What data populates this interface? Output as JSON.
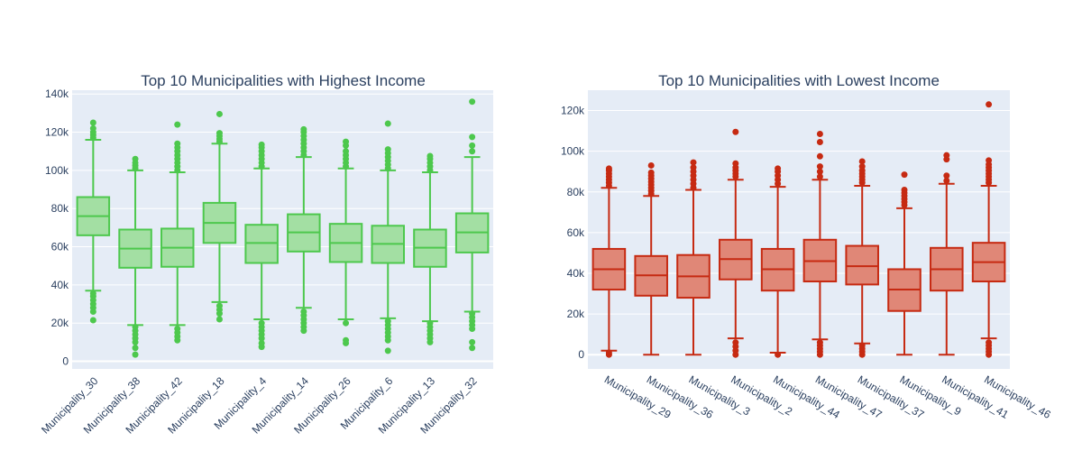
{
  "chart_data": [
    {
      "type": "box",
      "title": "Top 10 Municipalities with Highest Income",
      "xlabel": "",
      "ylabel": "",
      "ylim": [
        -4000,
        142000
      ],
      "yticks": [
        0,
        20000,
        40000,
        60000,
        80000,
        100000,
        120000,
        140000
      ],
      "ytick_labels": [
        "0",
        "20k",
        "40k",
        "60k",
        "80k",
        "100k",
        "120k",
        "140k"
      ],
      "grid": true,
      "colors": {
        "line": "#4dc84d",
        "fill": "#a3dfa3"
      },
      "categories": [
        "Municipality_30",
        "Municipality_38",
        "Municipality_42",
        "Municipality_18",
        "Municipality_4",
        "Municipality_14",
        "Municipality_26",
        "Municipality_6",
        "Municipality_13",
        "Municipality_32"
      ],
      "boxes": [
        {
          "category": "Municipality_30",
          "lower_fence": 37000,
          "q1": 66000,
          "median": 76000,
          "q3": 86000,
          "upper_fence": 116000,
          "outliers": [
            21500,
            26000,
            28000,
            30000,
            32000,
            34000,
            35500,
            117000,
            118500,
            120000,
            122000,
            125000
          ]
        },
        {
          "category": "Municipality_38",
          "lower_fence": 19000,
          "q1": 49000,
          "median": 59000,
          "q3": 69000,
          "upper_fence": 100000,
          "outliers": [
            3500,
            7000,
            10000,
            12000,
            14000,
            16000,
            18000,
            101000,
            102500,
            104000,
            106000
          ]
        },
        {
          "category": "Municipality_42",
          "lower_fence": 19000,
          "q1": 49500,
          "median": 59500,
          "q3": 69500,
          "upper_fence": 99000,
          "outliers": [
            11000,
            13000,
            15000,
            17000,
            100000,
            102000,
            104000,
            106000,
            108000,
            110000,
            112000,
            114000,
            124000
          ]
        },
        {
          "category": "Municipality_18",
          "lower_fence": 31000,
          "q1": 62000,
          "median": 72500,
          "q3": 83000,
          "upper_fence": 114000,
          "outliers": [
            22000,
            25000,
            27000,
            29000,
            115000,
            116500,
            118000,
            119500,
            129500
          ]
        },
        {
          "category": "Municipality_4",
          "lower_fence": 22000,
          "q1": 51500,
          "median": 62000,
          "q3": 71500,
          "upper_fence": 101000,
          "outliers": [
            7500,
            9500,
            12000,
            14000,
            16000,
            18000,
            20000,
            102000,
            104000,
            106000,
            108000,
            110000,
            112000,
            113500
          ]
        },
        {
          "category": "Municipality_14",
          "lower_fence": 28000,
          "q1": 57500,
          "median": 67500,
          "q3": 77000,
          "upper_fence": 107000,
          "outliers": [
            16000,
            18000,
            20000,
            22000,
            24000,
            26000,
            108000,
            110000,
            112000,
            114000,
            116000,
            118000,
            120000,
            121500
          ]
        },
        {
          "category": "Municipality_26",
          "lower_fence": 22000,
          "q1": 52000,
          "median": 62000,
          "q3": 72000,
          "upper_fence": 101000,
          "outliers": [
            9500,
            11000,
            20000,
            102000,
            104000,
            106000,
            108000,
            110000,
            113000,
            115000
          ]
        },
        {
          "category": "Municipality_6",
          "lower_fence": 22500,
          "q1": 51500,
          "median": 61500,
          "q3": 71000,
          "upper_fence": 100000,
          "outliers": [
            5500,
            11000,
            13000,
            15000,
            17000,
            19000,
            21000,
            101000,
            103000,
            105000,
            107000,
            109000,
            111000,
            124500
          ]
        },
        {
          "category": "Municipality_13",
          "lower_fence": 21000,
          "q1": 49500,
          "median": 59500,
          "q3": 69000,
          "upper_fence": 99000,
          "outliers": [
            10000,
            12000,
            14000,
            16000,
            18000,
            20000,
            100000,
            102000,
            104000,
            106000,
            107500
          ]
        },
        {
          "category": "Municipality_32",
          "lower_fence": 26000,
          "q1": 57000,
          "median": 67500,
          "q3": 77500,
          "upper_fence": 107000,
          "outliers": [
            7000,
            10000,
            17000,
            19000,
            21000,
            23000,
            25000,
            110000,
            113000,
            117500,
            136000
          ]
        }
      ]
    },
    {
      "type": "box",
      "title": "Top 10 Municipalities with Lowest Income",
      "xlabel": "",
      "ylabel": "",
      "ylim": [
        -7000,
        130000
      ],
      "yticks": [
        0,
        20000,
        40000,
        60000,
        80000,
        100000,
        120000
      ],
      "ytick_labels": [
        "0",
        "20k",
        "40k",
        "60k",
        "80k",
        "100k",
        "120k"
      ],
      "grid": true,
      "colors": {
        "line": "#c62a12",
        "fill": "#e08777"
      },
      "categories": [
        "Municipality_29",
        "Municipality_36",
        "Municipality_3",
        "Municipality_2",
        "Municipality_44",
        "Municipality_47",
        "Municipality_37",
        "Municipality_9",
        "Municipality_41",
        "Municipality_46"
      ],
      "boxes": [
        {
          "category": "Municipality_29",
          "lower_fence": 2000,
          "q1": 32000,
          "median": 42000,
          "q3": 52000,
          "upper_fence": 82000,
          "outliers": [
            0,
            1000,
            83000,
            84500,
            86000,
            87500,
            89000,
            90500,
            91500
          ]
        },
        {
          "category": "Municipality_36",
          "lower_fence": 0,
          "q1": 29000,
          "median": 39000,
          "q3": 48500,
          "upper_fence": 78000,
          "outliers": [
            79000,
            80500,
            82000,
            83500,
            85000,
            86500,
            88000,
            89500,
            93000
          ]
        },
        {
          "category": "Municipality_3",
          "lower_fence": 0,
          "q1": 28000,
          "median": 38500,
          "q3": 49000,
          "upper_fence": 81000,
          "outliers": [
            82000,
            84000,
            86000,
            88000,
            90000,
            92000,
            94500
          ]
        },
        {
          "category": "Municipality_2",
          "lower_fence": 8000,
          "q1": 37000,
          "median": 47000,
          "q3": 56500,
          "upper_fence": 86000,
          "outliers": [
            0,
            2000,
            4000,
            6000,
            87500,
            89000,
            90500,
            92000,
            94000,
            109500
          ]
        },
        {
          "category": "Municipality_44",
          "lower_fence": 1000,
          "q1": 31500,
          "median": 42000,
          "q3": 52000,
          "upper_fence": 82500,
          "outliers": [
            0,
            84000,
            86000,
            88000,
            90000,
            91500
          ]
        },
        {
          "category": "Municipality_47",
          "lower_fence": 7500,
          "q1": 36000,
          "median": 46000,
          "q3": 56500,
          "upper_fence": 86000,
          "outliers": [
            0,
            1500,
            3000,
            4500,
            6000,
            87500,
            90000,
            92500,
            97500,
            104500,
            108500
          ]
        },
        {
          "category": "Municipality_37",
          "lower_fence": 5500,
          "q1": 34500,
          "median": 43500,
          "q3": 53500,
          "upper_fence": 83000,
          "outliers": [
            0,
            1500,
            3000,
            4500,
            84500,
            86000,
            87500,
            89000,
            90500,
            92500,
            95000
          ]
        },
        {
          "category": "Municipality_9",
          "lower_fence": 0,
          "q1": 21500,
          "median": 32000,
          "q3": 42000,
          "upper_fence": 72000,
          "outliers": [
            73500,
            75000,
            76500,
            78000,
            79500,
            81000,
            88500
          ]
        },
        {
          "category": "Municipality_41",
          "lower_fence": 0,
          "q1": 31500,
          "median": 42000,
          "q3": 52500,
          "upper_fence": 84000,
          "outliers": [
            85500,
            88000,
            96000,
            98000
          ]
        },
        {
          "category": "Municipality_46",
          "lower_fence": 8000,
          "q1": 36000,
          "median": 45500,
          "q3": 55000,
          "upper_fence": 83000,
          "outliers": [
            0,
            1500,
            3000,
            4500,
            6000,
            84500,
            86000,
            87500,
            89000,
            90500,
            92000,
            93500,
            95500,
            123000
          ]
        }
      ]
    }
  ]
}
